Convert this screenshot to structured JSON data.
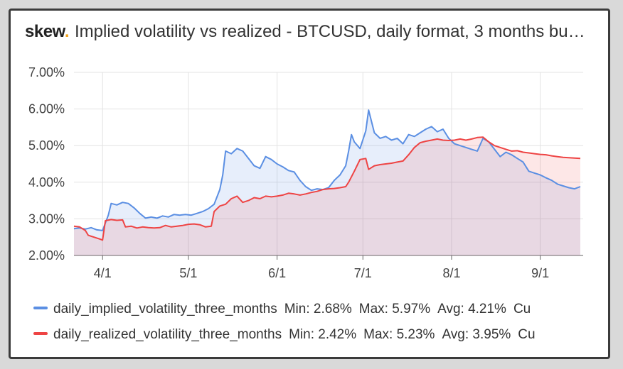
{
  "header": {
    "logo_text": "skew",
    "logo_dot": ".",
    "title": "Implied volatility vs realized - BTCUSD, daily format, 3 months bu…"
  },
  "colors": {
    "implied": "#5b8fe3",
    "realized": "#ee4444",
    "logo_accent": "#f2a31b"
  },
  "legend": [
    {
      "name": "daily_implied_volatility_three_months",
      "min": "Min: 2.68%",
      "max": "Max: 5.97%",
      "avg": "Avg: 4.21%",
      "cur": "Cu"
    },
    {
      "name": "daily_realized_volatility_three_months",
      "min": "Min: 2.42%",
      "max": "Max: 5.23%",
      "avg": "Avg: 3.95%",
      "cur": "Cu"
    }
  ],
  "chart_data": {
    "type": "area",
    "x_tick_labels": [
      "4/1",
      "5/1",
      "6/1",
      "7/1",
      "8/1",
      "9/1"
    ],
    "x_tick_dates": [
      "2020-04-01",
      "2020-05-01",
      "2020-06-01",
      "2020-07-01",
      "2020-08-01",
      "2020-09-01"
    ],
    "y_tick_labels": [
      "2.00%",
      "3.00%",
      "4.00%",
      "5.00%",
      "6.00%",
      "7.00%"
    ],
    "ylim": [
      2,
      7
    ],
    "xlim": [
      "2020-03-22",
      "2020-09-16"
    ],
    "grid": true,
    "legend_position": "bottom",
    "series": [
      {
        "name": "daily_implied_volatility_three_months",
        "points": [
          [
            "2020-03-22",
            2.73
          ],
          [
            "2020-03-24",
            2.75
          ],
          [
            "2020-03-26",
            2.72
          ],
          [
            "2020-03-28",
            2.76
          ],
          [
            "2020-03-30",
            2.7
          ],
          [
            "2020-04-01",
            2.68
          ],
          [
            "2020-04-03",
            3.1
          ],
          [
            "2020-04-04",
            3.42
          ],
          [
            "2020-04-06",
            3.38
          ],
          [
            "2020-04-08",
            3.45
          ],
          [
            "2020-04-10",
            3.42
          ],
          [
            "2020-04-12",
            3.3
          ],
          [
            "2020-04-14",
            3.15
          ],
          [
            "2020-04-16",
            3.02
          ],
          [
            "2020-04-18",
            3.05
          ],
          [
            "2020-04-20",
            3.02
          ],
          [
            "2020-04-22",
            3.08
          ],
          [
            "2020-04-24",
            3.05
          ],
          [
            "2020-04-26",
            3.12
          ],
          [
            "2020-04-28",
            3.1
          ],
          [
            "2020-04-30",
            3.12
          ],
          [
            "2020-05-02",
            3.1
          ],
          [
            "2020-05-04",
            3.15
          ],
          [
            "2020-05-06",
            3.2
          ],
          [
            "2020-05-08",
            3.28
          ],
          [
            "2020-05-10",
            3.4
          ],
          [
            "2020-05-12",
            3.8
          ],
          [
            "2020-05-13",
            4.2
          ],
          [
            "2020-05-14",
            4.85
          ],
          [
            "2020-05-16",
            4.78
          ],
          [
            "2020-05-18",
            4.92
          ],
          [
            "2020-05-20",
            4.85
          ],
          [
            "2020-05-22",
            4.65
          ],
          [
            "2020-05-24",
            4.45
          ],
          [
            "2020-05-26",
            4.38
          ],
          [
            "2020-05-28",
            4.7
          ],
          [
            "2020-05-30",
            4.62
          ],
          [
            "2020-06-01",
            4.5
          ],
          [
            "2020-06-03",
            4.42
          ],
          [
            "2020-06-05",
            4.32
          ],
          [
            "2020-06-07",
            4.28
          ],
          [
            "2020-06-09",
            4.05
          ],
          [
            "2020-06-11",
            3.88
          ],
          [
            "2020-06-13",
            3.78
          ],
          [
            "2020-06-15",
            3.82
          ],
          [
            "2020-06-17",
            3.8
          ],
          [
            "2020-06-19",
            3.85
          ],
          [
            "2020-06-21",
            4.05
          ],
          [
            "2020-06-23",
            4.2
          ],
          [
            "2020-06-25",
            4.45
          ],
          [
            "2020-06-26",
            4.85
          ],
          [
            "2020-06-27",
            5.3
          ],
          [
            "2020-06-28",
            5.1
          ],
          [
            "2020-06-30",
            4.92
          ],
          [
            "2020-07-02",
            5.4
          ],
          [
            "2020-07-03",
            5.97
          ],
          [
            "2020-07-05",
            5.35
          ],
          [
            "2020-07-07",
            5.2
          ],
          [
            "2020-07-09",
            5.25
          ],
          [
            "2020-07-11",
            5.15
          ],
          [
            "2020-07-13",
            5.2
          ],
          [
            "2020-07-15",
            5.05
          ],
          [
            "2020-07-17",
            5.3
          ],
          [
            "2020-07-19",
            5.25
          ],
          [
            "2020-07-21",
            5.35
          ],
          [
            "2020-07-23",
            5.45
          ],
          [
            "2020-07-25",
            5.52
          ],
          [
            "2020-07-27",
            5.38
          ],
          [
            "2020-07-29",
            5.45
          ],
          [
            "2020-07-31",
            5.2
          ],
          [
            "2020-08-02",
            5.05
          ],
          [
            "2020-08-04",
            5.0
          ],
          [
            "2020-08-06",
            4.95
          ],
          [
            "2020-08-08",
            4.9
          ],
          [
            "2020-08-10",
            4.85
          ],
          [
            "2020-08-12",
            5.2
          ],
          [
            "2020-08-14",
            5.1
          ],
          [
            "2020-08-16",
            4.9
          ],
          [
            "2020-08-18",
            4.7
          ],
          [
            "2020-08-20",
            4.82
          ],
          [
            "2020-08-22",
            4.75
          ],
          [
            "2020-08-24",
            4.65
          ],
          [
            "2020-08-26",
            4.55
          ],
          [
            "2020-08-28",
            4.3
          ],
          [
            "2020-08-30",
            4.25
          ],
          [
            "2020-09-01",
            4.2
          ],
          [
            "2020-09-03",
            4.12
          ],
          [
            "2020-09-05",
            4.05
          ],
          [
            "2020-09-07",
            3.95
          ],
          [
            "2020-09-09",
            3.9
          ],
          [
            "2020-09-11",
            3.85
          ],
          [
            "2020-09-13",
            3.82
          ],
          [
            "2020-09-15",
            3.88
          ]
        ]
      },
      {
        "name": "daily_realized_volatility_three_months",
        "points": [
          [
            "2020-03-22",
            2.8
          ],
          [
            "2020-03-24",
            2.78
          ],
          [
            "2020-03-26",
            2.68
          ],
          [
            "2020-03-27",
            2.55
          ],
          [
            "2020-03-29",
            2.5
          ],
          [
            "2020-03-31",
            2.45
          ],
          [
            "2020-04-01",
            2.42
          ],
          [
            "2020-04-02",
            2.95
          ],
          [
            "2020-04-04",
            2.98
          ],
          [
            "2020-04-06",
            2.96
          ],
          [
            "2020-04-08",
            2.97
          ],
          [
            "2020-04-09",
            2.78
          ],
          [
            "2020-04-11",
            2.8
          ],
          [
            "2020-04-13",
            2.75
          ],
          [
            "2020-04-15",
            2.78
          ],
          [
            "2020-04-17",
            2.76
          ],
          [
            "2020-04-19",
            2.75
          ],
          [
            "2020-04-21",
            2.76
          ],
          [
            "2020-04-23",
            2.82
          ],
          [
            "2020-04-25",
            2.78
          ],
          [
            "2020-04-27",
            2.8
          ],
          [
            "2020-04-29",
            2.82
          ],
          [
            "2020-05-01",
            2.85
          ],
          [
            "2020-05-03",
            2.86
          ],
          [
            "2020-05-05",
            2.84
          ],
          [
            "2020-05-07",
            2.78
          ],
          [
            "2020-05-09",
            2.8
          ],
          [
            "2020-05-10",
            3.2
          ],
          [
            "2020-05-12",
            3.35
          ],
          [
            "2020-05-14",
            3.4
          ],
          [
            "2020-05-16",
            3.55
          ],
          [
            "2020-05-18",
            3.62
          ],
          [
            "2020-05-20",
            3.45
          ],
          [
            "2020-05-22",
            3.5
          ],
          [
            "2020-05-24",
            3.58
          ],
          [
            "2020-05-26",
            3.55
          ],
          [
            "2020-05-28",
            3.62
          ],
          [
            "2020-05-30",
            3.6
          ],
          [
            "2020-06-01",
            3.62
          ],
          [
            "2020-06-03",
            3.65
          ],
          [
            "2020-06-05",
            3.7
          ],
          [
            "2020-06-07",
            3.68
          ],
          [
            "2020-06-09",
            3.65
          ],
          [
            "2020-06-11",
            3.68
          ],
          [
            "2020-06-13",
            3.72
          ],
          [
            "2020-06-15",
            3.75
          ],
          [
            "2020-06-17",
            3.8
          ],
          [
            "2020-06-19",
            3.82
          ],
          [
            "2020-06-21",
            3.83
          ],
          [
            "2020-06-23",
            3.85
          ],
          [
            "2020-06-25",
            3.88
          ],
          [
            "2020-06-26",
            4.0
          ],
          [
            "2020-06-28",
            4.3
          ],
          [
            "2020-06-30",
            4.62
          ],
          [
            "2020-07-02",
            4.65
          ],
          [
            "2020-07-03",
            4.35
          ],
          [
            "2020-07-05",
            4.45
          ],
          [
            "2020-07-07",
            4.48
          ],
          [
            "2020-07-09",
            4.5
          ],
          [
            "2020-07-11",
            4.52
          ],
          [
            "2020-07-13",
            4.55
          ],
          [
            "2020-07-15",
            4.58
          ],
          [
            "2020-07-17",
            4.75
          ],
          [
            "2020-07-19",
            4.95
          ],
          [
            "2020-07-21",
            5.08
          ],
          [
            "2020-07-23",
            5.12
          ],
          [
            "2020-07-25",
            5.15
          ],
          [
            "2020-07-27",
            5.18
          ],
          [
            "2020-07-29",
            5.15
          ],
          [
            "2020-07-31",
            5.14
          ],
          [
            "2020-08-02",
            5.15
          ],
          [
            "2020-08-04",
            5.18
          ],
          [
            "2020-08-06",
            5.15
          ],
          [
            "2020-08-08",
            5.18
          ],
          [
            "2020-08-10",
            5.22
          ],
          [
            "2020-08-12",
            5.23
          ],
          [
            "2020-08-14",
            5.1
          ],
          [
            "2020-08-16",
            5.0
          ],
          [
            "2020-08-18",
            4.95
          ],
          [
            "2020-08-20",
            4.9
          ],
          [
            "2020-08-22",
            4.85
          ],
          [
            "2020-08-24",
            4.86
          ],
          [
            "2020-08-26",
            4.82
          ],
          [
            "2020-08-28",
            4.8
          ],
          [
            "2020-08-30",
            4.78
          ],
          [
            "2020-09-01",
            4.76
          ],
          [
            "2020-09-03",
            4.75
          ],
          [
            "2020-09-05",
            4.72
          ],
          [
            "2020-09-07",
            4.7
          ],
          [
            "2020-09-09",
            4.68
          ],
          [
            "2020-09-11",
            4.67
          ],
          [
            "2020-09-13",
            4.66
          ],
          [
            "2020-09-15",
            4.65
          ]
        ]
      }
    ]
  }
}
